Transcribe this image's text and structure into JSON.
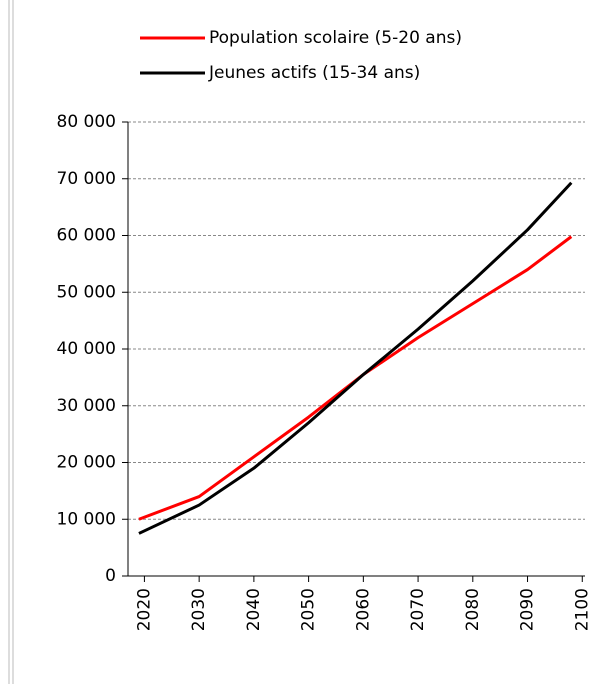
{
  "chart_data": {
    "type": "line",
    "x": [
      2019,
      2030,
      2040,
      2050,
      2060,
      2070,
      2080,
      2090,
      2098
    ],
    "series": [
      {
        "name": "Population scolaire (5-20 ans)",
        "color": "#ff0000",
        "values": [
          10000,
          14000,
          21000,
          28000,
          35500,
          42000,
          48000,
          54000,
          59800
        ]
      },
      {
        "name": "Jeunes actifs (15-34 ans)",
        "color": "#000000",
        "values": [
          7500,
          12500,
          19000,
          27000,
          35500,
          43500,
          52000,
          61000,
          69300
        ]
      }
    ],
    "xlim": [
      2017,
      2100.5
    ],
    "xticks": [
      2020,
      2030,
      2040,
      2050,
      2060,
      2070,
      2080,
      2090,
      2100
    ],
    "ylim": [
      0,
      80000
    ],
    "yticks": [
      {
        "value": 0,
        "label": "0"
      },
      {
        "value": 10000,
        "label": "10 000"
      },
      {
        "value": 20000,
        "label": "20 000"
      },
      {
        "value": 30000,
        "label": "30 000"
      },
      {
        "value": 40000,
        "label": "40 000"
      },
      {
        "value": 50000,
        "label": "50 000"
      },
      {
        "value": 60000,
        "label": "60 000"
      },
      {
        "value": 70000,
        "label": "70 000"
      },
      {
        "value": 80000,
        "label": "80 000"
      }
    ],
    "grid": true
  }
}
